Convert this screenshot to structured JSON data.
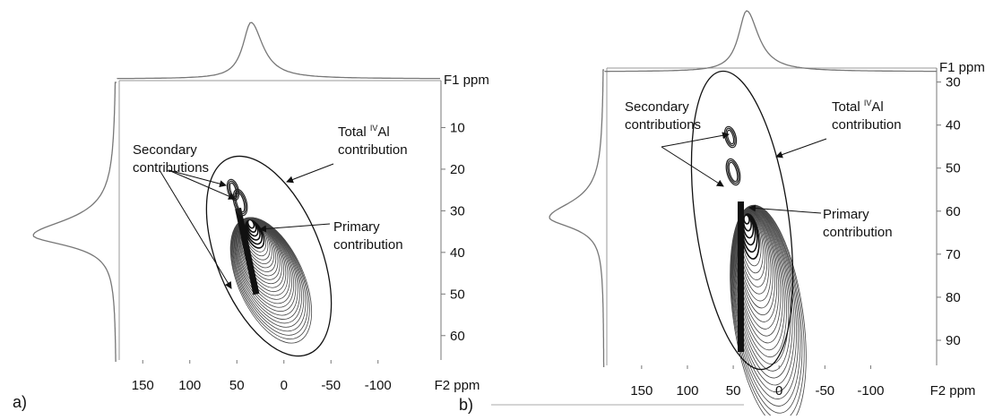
{
  "chart_data": [
    {
      "type": "contour",
      "panel_label": "a)",
      "xlabel": "F2 ppm",
      "ylabel": "F1 ppm",
      "xlim": [
        175,
        -165
      ],
      "xticks": [
        150,
        100,
        50,
        0,
        -50,
        -100
      ],
      "ylim": [
        0,
        65
      ],
      "yticks": [
        10,
        20,
        30,
        40,
        50,
        60
      ],
      "annotations": {
        "secondary": [
          "Secondary",
          "contributions"
        ],
        "total": {
          "prefix": "Total ",
          "superscript": "IV",
          "suffix": "Al",
          "line2": "contribution"
        },
        "primary": [
          "Primary",
          "contribution"
        ]
      }
    },
    {
      "type": "contour",
      "panel_label": "b)",
      "xlabel": "F2 ppm",
      "ylabel": "F1 ppm",
      "xlim": [
        188,
        -170
      ],
      "xticks": [
        150,
        100,
        50,
        0,
        -50,
        -100
      ],
      "ylim": [
        28,
        95
      ],
      "yticks": [
        30,
        40,
        50,
        60,
        70,
        80,
        90
      ],
      "annotations": {
        "secondary": [
          "Secondary",
          "contributions"
        ],
        "total": {
          "prefix": "Total ",
          "superscript": "IV",
          "suffix": "Al",
          "line2": "contribution"
        },
        "primary": [
          "Primary",
          "contribution"
        ]
      }
    }
  ]
}
